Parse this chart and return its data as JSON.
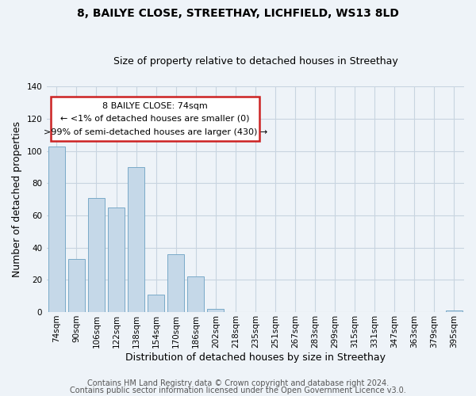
{
  "title": "8, BAILYE CLOSE, STREETHAY, LICHFIELD, WS13 8LD",
  "subtitle": "Size of property relative to detached houses in Streethay",
  "xlabel": "Distribution of detached houses by size in Streethay",
  "ylabel": "Number of detached properties",
  "bar_labels": [
    "74sqm",
    "90sqm",
    "106sqm",
    "122sqm",
    "138sqm",
    "154sqm",
    "170sqm",
    "186sqm",
    "202sqm",
    "218sqm",
    "235sqm",
    "251sqm",
    "267sqm",
    "283sqm",
    "299sqm",
    "315sqm",
    "331sqm",
    "347sqm",
    "363sqm",
    "379sqm",
    "395sqm"
  ],
  "bar_values": [
    103,
    33,
    71,
    65,
    90,
    11,
    36,
    22,
    2,
    0,
    0,
    0,
    0,
    0,
    0,
    0,
    0,
    0,
    0,
    0,
    1
  ],
  "bar_color": "#c5d8e8",
  "bar_edge_color": "#7aaac8",
  "ylim": [
    0,
    140
  ],
  "yticks": [
    0,
    20,
    40,
    60,
    80,
    100,
    120,
    140
  ],
  "annotation_line1": "8 BAILYE CLOSE: 74sqm",
  "annotation_line2": "← <1% of detached houses are smaller (0)",
  "annotation_line3": ">99% of semi-detached houses are larger (430) →",
  "footer_line1": "Contains HM Land Registry data © Crown copyright and database right 2024.",
  "footer_line2": "Contains public sector information licensed under the Open Government Licence v3.0.",
  "bg_color": "#eef3f8",
  "plot_bg_color": "#eef3f8",
  "grid_color": "#c8d4e0",
  "title_fontsize": 10,
  "subtitle_fontsize": 9,
  "axis_label_fontsize": 9,
  "tick_fontsize": 7.5,
  "annotation_fontsize": 8,
  "footer_fontsize": 7
}
